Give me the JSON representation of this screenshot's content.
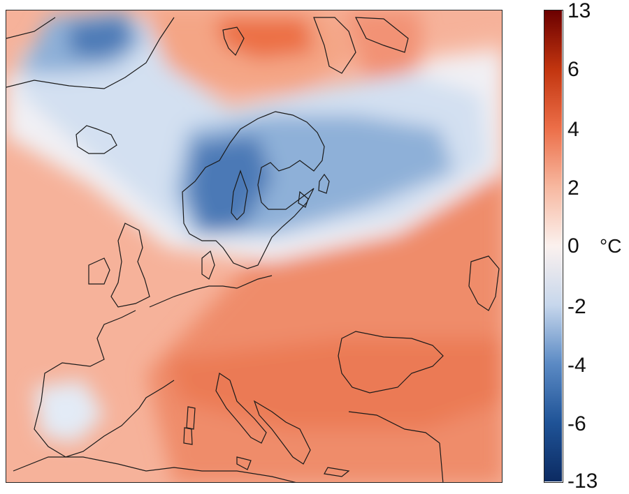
{
  "map": {
    "type": "temperature-anomaly map of Europe",
    "colormap": {
      "ticks": [
        "13",
        "6",
        "4",
        "2",
        "0",
        "-2",
        "-4",
        "-6",
        "-13"
      ],
      "unit": "°C",
      "colors": [
        "#6b0000",
        "#c2350f",
        "#ec6e48",
        "#f7b8a0",
        "#fbf1ee",
        "#c7d7ec",
        "#5b8ac4",
        "#1f5397",
        "#0c2b62"
      ]
    },
    "palette": {
      "warm_deep": "#e2572e",
      "warm_mid": "#f08866",
      "warm_light": "#f8c4b0",
      "neutral": "#f4f1f3",
      "cool_light": "#d4e2f2",
      "cool_mid": "#7fa4d2",
      "cool_deep": "#3a6aab",
      "coast": "#1a1a1a"
    }
  }
}
